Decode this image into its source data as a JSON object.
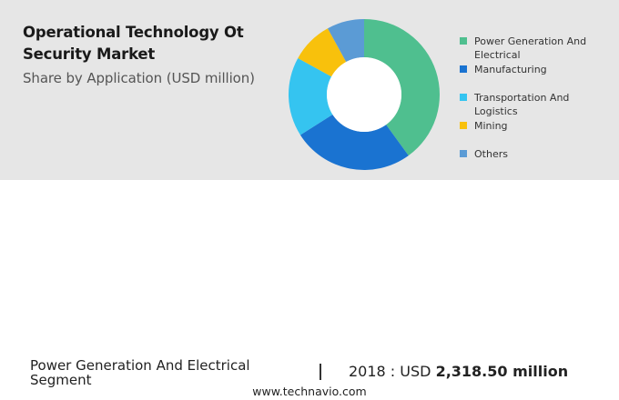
{
  "header": {
    "title": "Operational Technology Ot Security Market",
    "subtitle": "Share by Application (USD million)"
  },
  "chart_data": {
    "type": "pie",
    "donut": true,
    "categories": [
      "Power Generation And Electrical",
      "Manufacturing",
      "Transportation And Logistics",
      "Mining",
      "Others"
    ],
    "values": [
      40,
      26,
      17,
      9,
      8
    ],
    "colors": [
      "#4fbf8f",
      "#1a73d1",
      "#35c4f0",
      "#f8c10c",
      "#5b9bd5"
    ],
    "legend_placement": "right"
  },
  "footer": {
    "segment_label": "Power Generation And Electrical Segment",
    "separator": "|",
    "year_text": "2018 : USD",
    "value_text": "2,318.50 million",
    "url": "www.technavio.com"
  }
}
